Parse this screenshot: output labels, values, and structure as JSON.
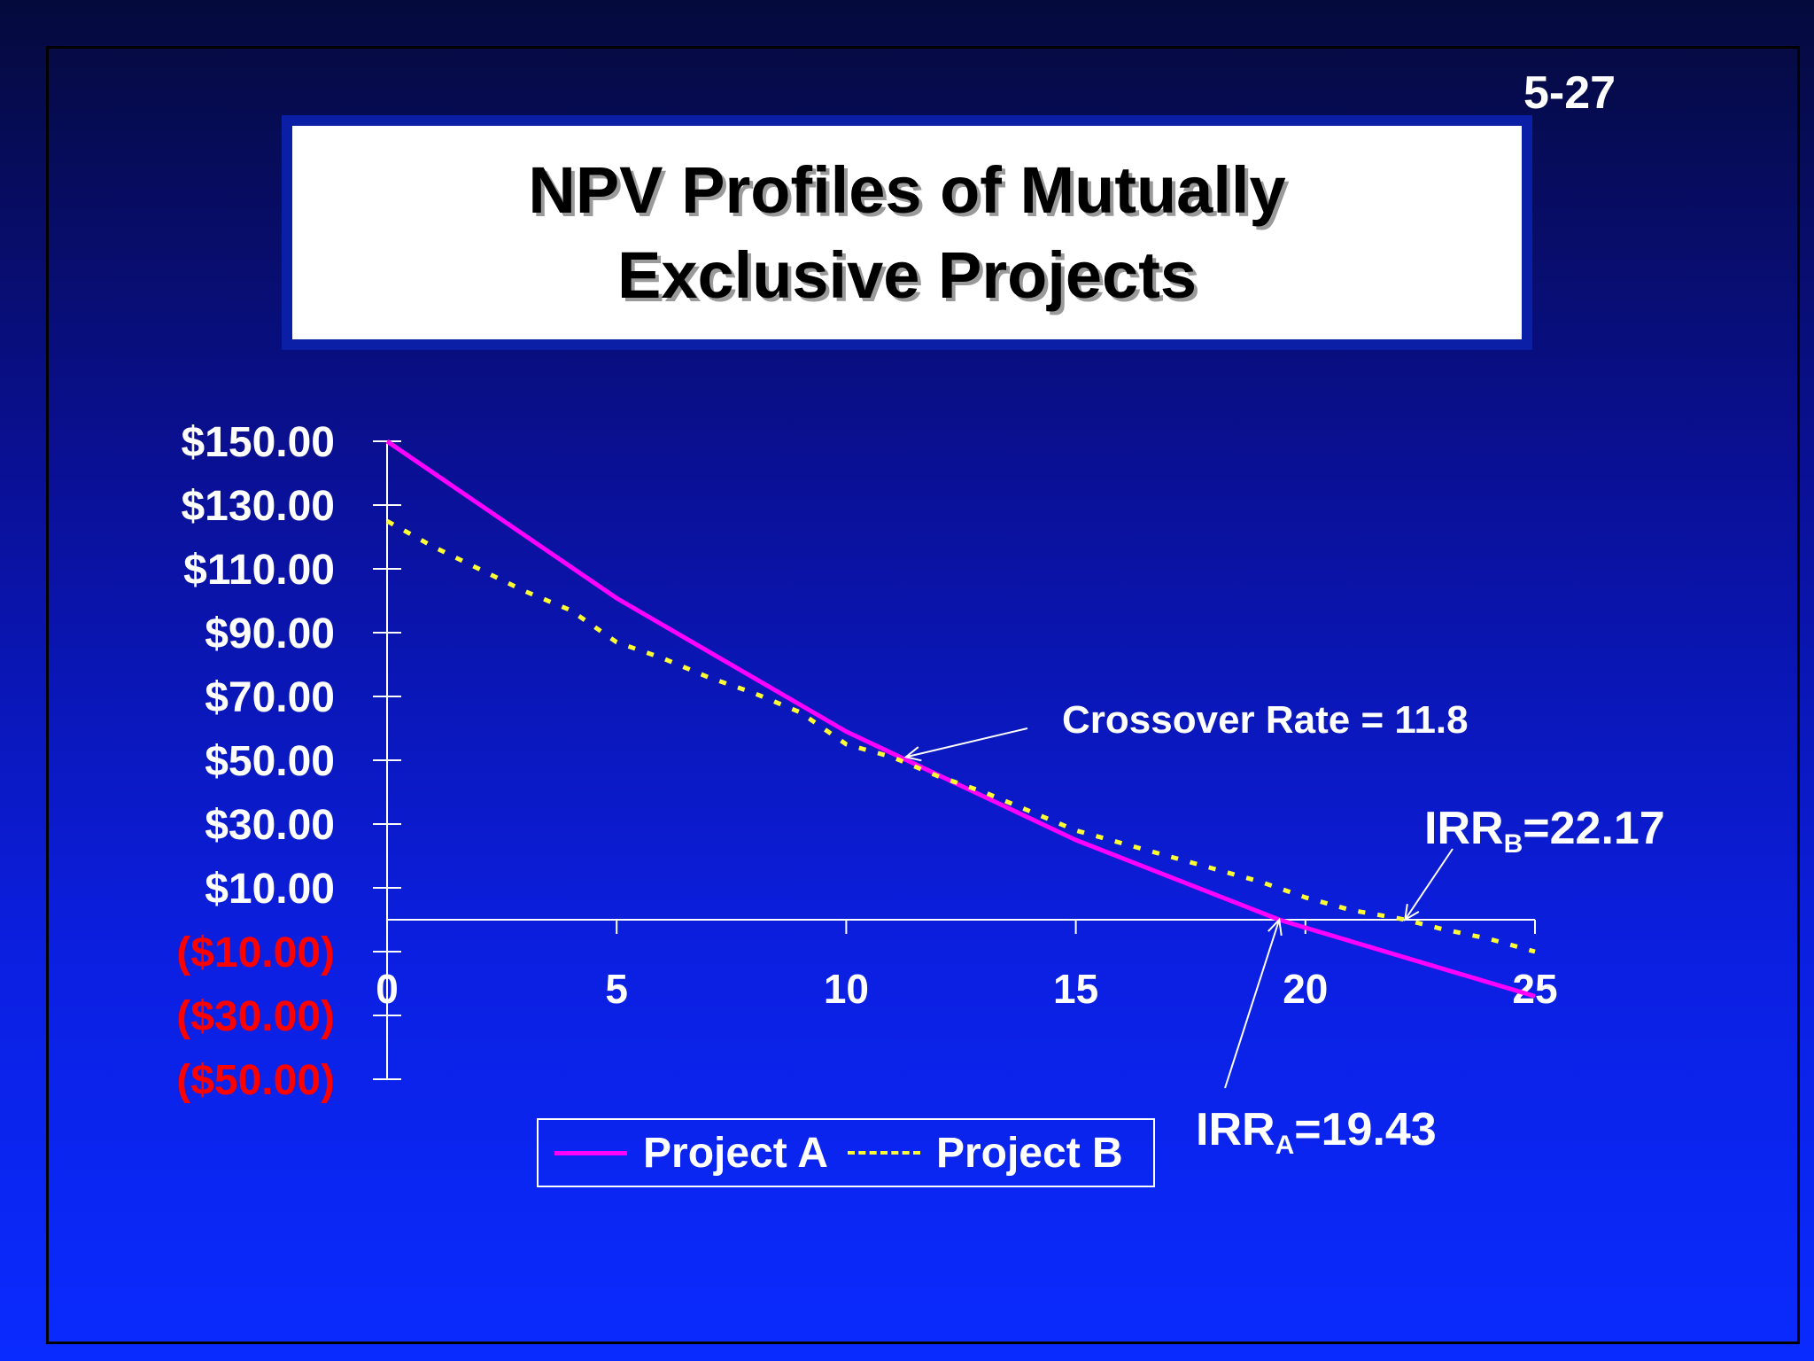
{
  "slide_number": "5-27",
  "title_lines": [
    "NPV Profiles of Mutually",
    "Exclusive Projects"
  ],
  "annotations": {
    "crossover": "Crossover Rate = 11.8",
    "irr_b_prefix": "IRR",
    "irr_b_sub": "B",
    "irr_b_value": "=22.17",
    "irr_a_prefix": "IRR",
    "irr_a_sub": "A",
    "irr_a_value": "=19.43"
  },
  "colors": {
    "project_a": "#ff00ff",
    "project_b": "#ffff33",
    "negative_tick": "#ff0000",
    "positive_tick": "#ffffff"
  },
  "chart_data": {
    "type": "line",
    "xlim": [
      0,
      25
    ],
    "ylim": [
      -50,
      150
    ],
    "x_ticks": [
      0,
      5,
      10,
      15,
      20,
      25
    ],
    "x_tick_labels": [
      "0",
      "5",
      "10",
      "15",
      "20",
      "25"
    ],
    "y_ticks": [
      150,
      130,
      110,
      90,
      70,
      50,
      30,
      10,
      -10,
      -30,
      -50
    ],
    "y_tick_labels": [
      "$150.00",
      "$130.00",
      "$110.00",
      "$90.00",
      "$70.00",
      "$50.00",
      "$30.00",
      "$10.00",
      "($10.00)",
      "($30.00)",
      "($50.00)"
    ],
    "series": [
      {
        "name": "Project A",
        "x": [
          0,
          5,
          10,
          15,
          19.43,
          20,
          25
        ],
        "values": [
          150,
          100.8,
          59,
          25,
          0,
          -2.5,
          -24
        ]
      },
      {
        "name": "Project B",
        "x": [
          0,
          1,
          2,
          3,
          4,
          5,
          6,
          7,
          8,
          9,
          10,
          11,
          12,
          13,
          14,
          15,
          16,
          17,
          18,
          19,
          20,
          21,
          22,
          22.17,
          23,
          24,
          25
        ],
        "values": [
          125,
          117,
          110,
          103,
          97,
          87,
          82,
          76,
          71,
          65,
          55,
          51,
          45,
          40,
          34,
          28,
          24,
          20,
          16,
          12,
          7,
          3,
          0.5,
          0,
          -3,
          -6,
          -10
        ]
      }
    ],
    "legend_placement": "bottom"
  }
}
